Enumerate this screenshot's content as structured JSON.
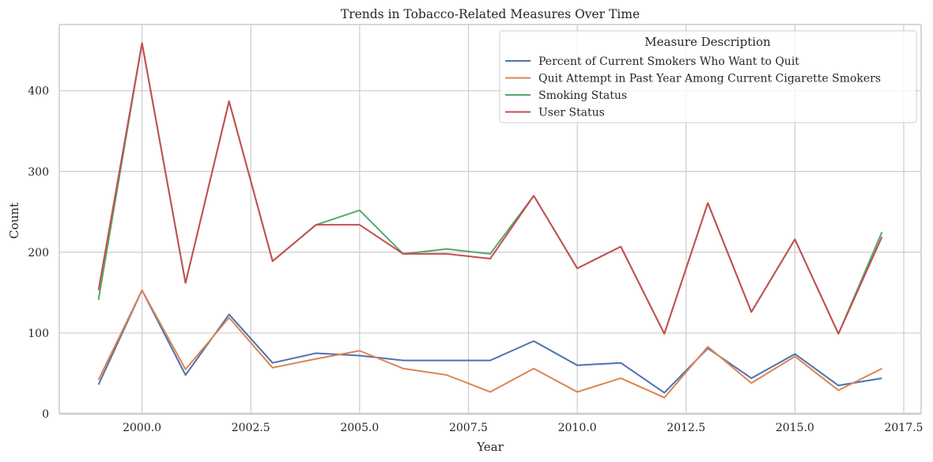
{
  "chart_data": {
    "type": "line",
    "title": "Trends in Tobacco-Related Measures Over Time",
    "xlabel": "Year",
    "ylabel": "Count",
    "xlim": [
      1998.1,
      2017.9
    ],
    "ylim": [
      0,
      482
    ],
    "x_ticks": [
      2000.0,
      2002.5,
      2005.0,
      2007.5,
      2010.0,
      2012.5,
      2015.0,
      2017.5
    ],
    "x_tick_labels": [
      "2000.0",
      "2002.5",
      "2005.0",
      "2007.5",
      "2010.0",
      "2012.5",
      "2015.0",
      "2017.5"
    ],
    "y_ticks": [
      0,
      100,
      200,
      300,
      400
    ],
    "y_tick_labels": [
      "0",
      "100",
      "200",
      "300",
      "400"
    ],
    "grid": true,
    "legend": {
      "title": "Measure Description",
      "position": "top-right"
    },
    "x": [
      1999,
      2000,
      2001,
      2002,
      2003,
      2004,
      2005,
      2006,
      2007,
      2008,
      2009,
      2010,
      2011,
      2012,
      2013,
      2014,
      2015,
      2016,
      2017
    ],
    "series": [
      {
        "name": "Percent of Current Smokers Who Want to Quit",
        "color": "#4c72b0",
        "values": [
          36,
          153,
          48,
          123,
          63,
          75,
          72,
          66,
          66,
          66,
          90,
          60,
          63,
          26,
          81,
          44,
          74,
          35,
          44
        ]
      },
      {
        "name": "Quit Attempt in Past Year Among Current Cigarette Smokers",
        "color": "#dd8452",
        "values": [
          42,
          153,
          55,
          119,
          57,
          68,
          78,
          56,
          48,
          27,
          56,
          27,
          44,
          20,
          83,
          38,
          71,
          29,
          56
        ]
      },
      {
        "name": "Smoking Status",
        "color": "#55a868",
        "values": [
          141,
          459,
          162,
          387,
          189,
          234,
          252,
          198,
          204,
          198,
          270,
          180,
          207,
          99,
          261,
          126,
          216,
          99,
          225
        ]
      },
      {
        "name": "User Status",
        "color": "#c44e52",
        "values": [
          153,
          459,
          162,
          387,
          189,
          234,
          234,
          198,
          198,
          192,
          270,
          180,
          207,
          99,
          261,
          126,
          216,
          99,
          219
        ]
      }
    ]
  }
}
